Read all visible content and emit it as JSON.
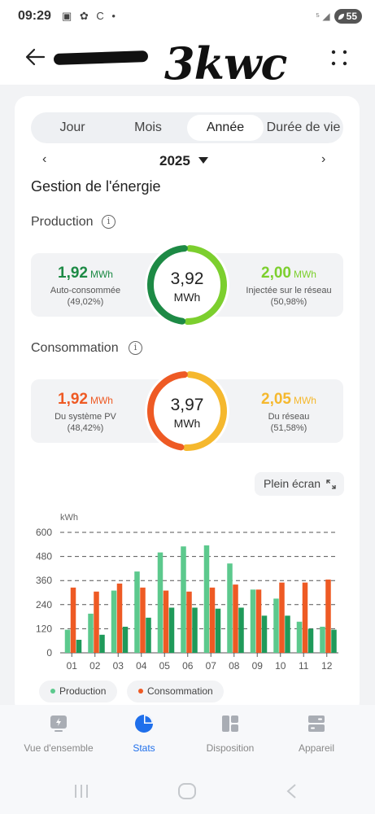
{
  "status_bar": {
    "time": "09:29",
    "icons": "▣ ✿ C •",
    "signal": "⁵ ◢",
    "battery": "55"
  },
  "header": {
    "handwritten_title": "3kwc"
  },
  "tabs": [
    {
      "label": "Jour",
      "active": false
    },
    {
      "label": "Mois",
      "active": false
    },
    {
      "label": "Année",
      "active": true
    },
    {
      "label": "Durée de vie",
      "active": false
    }
  ],
  "year_selector": {
    "prev": "‹",
    "year": "2025",
    "next": "›"
  },
  "energy_title": "Gestion de l'énergie",
  "production": {
    "title": "Production",
    "left": {
      "value": "1,92",
      "unit": "MWh",
      "label": "Auto-consommée",
      "pct": "(49,02%)",
      "color": "#1d8a45"
    },
    "right": {
      "value": "2,00",
      "unit": "MWh",
      "label": "Injectée sur le réseau",
      "pct": "(50,98%)",
      "color": "#7ccf2e"
    },
    "total": "3,92",
    "total_unit": "MWh",
    "share_left": 0.4902
  },
  "consumption": {
    "title": "Consommation",
    "left": {
      "value": "1,92",
      "unit": "MWh",
      "label": "Du système PV",
      "pct": "(48,42%)",
      "color": "#ee5a24"
    },
    "right": {
      "value": "2,05",
      "unit": "MWh",
      "label": "Du réseau",
      "pct": "(51,58%)",
      "color": "#f5b82e"
    },
    "total": "3,97",
    "total_unit": "MWh",
    "share_left": 0.4842
  },
  "fullscreen_label": "Plein écran",
  "chart_data": {
    "type": "bar",
    "ylabel": "kWh",
    "ylim": [
      0,
      600
    ],
    "yticks": [
      0,
      120,
      240,
      360,
      480,
      600
    ],
    "categories": [
      "01",
      "02",
      "03",
      "04",
      "05",
      "06",
      "07",
      "08",
      "09",
      "10",
      "11",
      "12"
    ],
    "series": [
      {
        "name": "Production",
        "color": "#5cc98d",
        "values": [
          115,
          195,
          310,
          405,
          500,
          530,
          535,
          445,
          315,
          270,
          155,
          130
        ]
      },
      {
        "name": "Consommation",
        "color": "#ee5a24",
        "values": [
          325,
          305,
          345,
          325,
          310,
          305,
          325,
          340,
          315,
          350,
          350,
          365
        ]
      },
      {
        "name": "",
        "color": "#1f9a5a",
        "values": [
          65,
          90,
          130,
          175,
          225,
          225,
          220,
          225,
          185,
          185,
          120,
          115
        ]
      }
    ],
    "grid": true,
    "legend": "bottom"
  },
  "bottom_nav": [
    {
      "label": "Vue d'ensemble",
      "icon": "overview-icon",
      "active": false
    },
    {
      "label": "Stats",
      "icon": "pie-chart-icon",
      "active": true
    },
    {
      "label": "Disposition",
      "icon": "layout-icon",
      "active": false
    },
    {
      "label": "Appareil",
      "icon": "device-icon",
      "active": false
    }
  ]
}
